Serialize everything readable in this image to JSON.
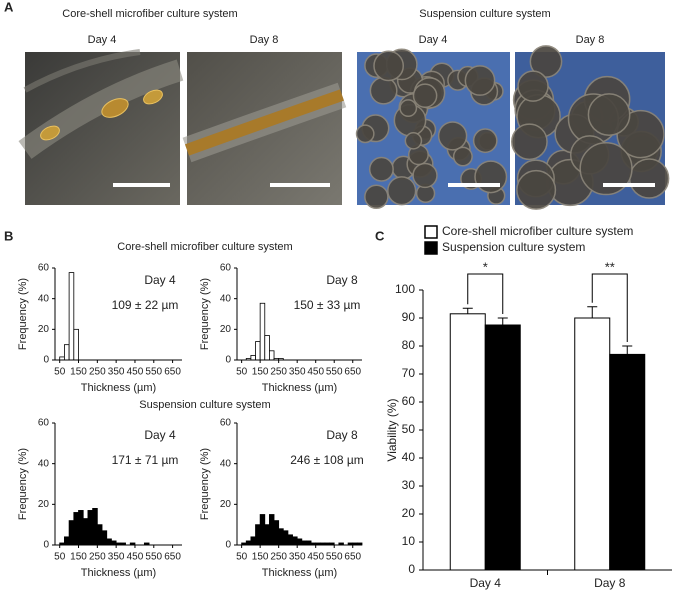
{
  "panel_labels": [
    "A",
    "B",
    "C"
  ],
  "panel_a": {
    "headings": [
      "Core-shell microfiber culture system",
      "Suspension culture system"
    ],
    "days": [
      "Day 4",
      "Day 8",
      "Day 4",
      "Day 8"
    ]
  },
  "panel_b": {
    "headings": [
      "Core-shell microfiber culture system",
      "Suspension culture system"
    ]
  },
  "chart_data": [
    {
      "type": "histogram",
      "annotation": "Day 4",
      "stats": "109 ± 22 µm",
      "xlabel": "Thickness (µm)",
      "ylabel": "Frequency (%)",
      "bins": [
        50,
        75,
        100,
        125,
        150
      ],
      "values": [
        2,
        10,
        57,
        20
      ],
      "color": "#ffffff",
      "edgecolor": "#000000",
      "xlim": [
        25,
        700
      ],
      "xticks": [
        50,
        150,
        250,
        350,
        450,
        550,
        650
      ],
      "ylim": [
        0,
        60
      ],
      "yticks": [
        0,
        20,
        40,
        60
      ]
    },
    {
      "type": "histogram",
      "annotation": "Day 8",
      "stats": "150 ± 33 µm",
      "xlabel": "Thickness (µm)",
      "ylabel": "Frequency (%)",
      "bins": [
        75,
        100,
        125,
        150,
        175,
        200,
        225,
        250,
        275
      ],
      "values": [
        1,
        3,
        12,
        37,
        16,
        6,
        1,
        1
      ],
      "color": "#ffffff",
      "edgecolor": "#000000",
      "xlim": [
        25,
        700
      ],
      "xticks": [
        50,
        150,
        250,
        350,
        450,
        550,
        650
      ],
      "ylim": [
        0,
        60
      ],
      "yticks": [
        0,
        20,
        40,
        60
      ]
    },
    {
      "type": "histogram",
      "annotation": "Day 4",
      "stats": "171 ± 71 µm",
      "xlabel": "Thickness (µm)",
      "ylabel": "Frequency (%)",
      "bins": [
        50,
        75,
        100,
        125,
        150,
        175,
        200,
        225,
        250,
        275,
        300,
        325,
        350,
        375,
        400,
        425,
        450,
        475,
        500,
        525
      ],
      "values": [
        1,
        4,
        12,
        16,
        17,
        13,
        17,
        18,
        10,
        7,
        3,
        2,
        1,
        1,
        0,
        1,
        0,
        0,
        1
      ],
      "color": "#000000",
      "edgecolor": "#000000",
      "xlim": [
        25,
        700
      ],
      "xticks": [
        50,
        150,
        250,
        350,
        450,
        550,
        650
      ],
      "ylim": [
        0,
        60
      ],
      "yticks": [
        0,
        20,
        40,
        60
      ]
    },
    {
      "type": "histogram",
      "annotation": "Day 8",
      "stats": "246 ± 108 µm",
      "xlabel": "Thickness (µm)",
      "ylabel": "Frequency (%)",
      "bins": [
        50,
        75,
        100,
        125,
        150,
        175,
        200,
        225,
        250,
        275,
        300,
        325,
        350,
        375,
        400,
        425,
        450,
        475,
        500,
        525,
        550,
        575,
        600,
        625,
        650,
        675,
        700
      ],
      "values": [
        1,
        2,
        4,
        10,
        15,
        10,
        15,
        12,
        8,
        7,
        5,
        4,
        3,
        2,
        2,
        1,
        1,
        1,
        1,
        1,
        0,
        1,
        0,
        1,
        1,
        1
      ],
      "color": "#000000",
      "edgecolor": "#000000",
      "xlim": [
        25,
        700
      ],
      "xticks": [
        50,
        150,
        250,
        350,
        450,
        550,
        650
      ],
      "ylim": [
        0,
        60
      ],
      "yticks": [
        0,
        20,
        40,
        60
      ]
    },
    {
      "type": "bar",
      "ylabel": "Viability (%)",
      "categories": [
        "Day 4",
        "Day 8"
      ],
      "legend": "top-left",
      "series": [
        {
          "name": "Core-shell microfiber culture system",
          "color": "#ffffff",
          "values": [
            91.5,
            90
          ],
          "errors": [
            2,
            4
          ]
        },
        {
          "name": "Suspension culture system",
          "color": "#000000",
          "values": [
            87.5,
            77
          ],
          "errors": [
            2.5,
            3
          ]
        }
      ],
      "significance": [
        "*",
        "**"
      ],
      "ylim": [
        0,
        100
      ],
      "yticks": [
        0,
        10,
        20,
        30,
        40,
        50,
        60,
        70,
        80,
        90,
        100
      ]
    }
  ]
}
